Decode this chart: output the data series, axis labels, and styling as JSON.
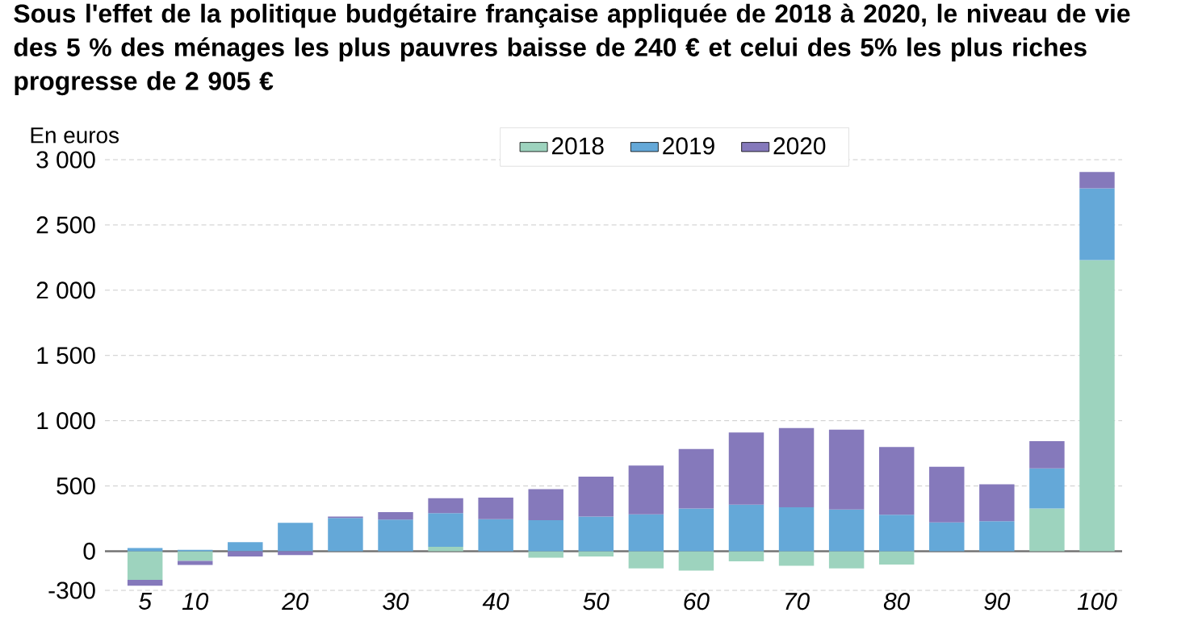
{
  "chart_data": {
    "type": "bar",
    "stacked": true,
    "title": "Sous l'effet de la politique budgétaire française appliquée de 2018 à 2020, le niveau de vie des 5 % des ménages les plus pauvres baisse de 240 € et celui des 5% les plus riches progresse de 2 905 €",
    "ylabel": "En euros",
    "categories": [
      "5",
      "10",
      null,
      "20",
      null,
      "30",
      null,
      "40",
      null,
      "50",
      null,
      "60",
      null,
      "70",
      null,
      "80",
      null,
      "90",
      null,
      "100"
    ],
    "series": [
      {
        "name": "2018",
        "color": "#9dd3be",
        "values": [
          -220,
          -75,
          0,
          0,
          0,
          0,
          33,
          0,
          -50,
          -40,
          -131,
          -148,
          -78,
          -111,
          -131,
          -102,
          0,
          0,
          328,
          2230
        ]
      },
      {
        "name": "2019",
        "color": "#64a8d8",
        "values": [
          25,
          10,
          70,
          217,
          255,
          242,
          258,
          246,
          238,
          266,
          283,
          328,
          357,
          336,
          320,
          279,
          221,
          230,
          307,
          550
        ]
      },
      {
        "name": "2020",
        "color": "#8579bb",
        "values": [
          -45,
          -30,
          -40,
          -30,
          10,
          57,
          115,
          164,
          238,
          305,
          373,
          455,
          553,
          607,
          611,
          520,
          426,
          283,
          209,
          125
        ]
      }
    ],
    "ylim": [
      -300,
      3000
    ],
    "yticks": [
      -300,
      0,
      500,
      {
        "value": 1000,
        "label": "1 000"
      },
      {
        "value": 1500,
        "label": "1 500"
      },
      {
        "value": 2000,
        "label": "2 000"
      },
      {
        "value": 2500,
        "label": "2 500"
      },
      {
        "value": 3000,
        "label": "3 000"
      }
    ],
    "grid": "y",
    "legend": "top"
  }
}
